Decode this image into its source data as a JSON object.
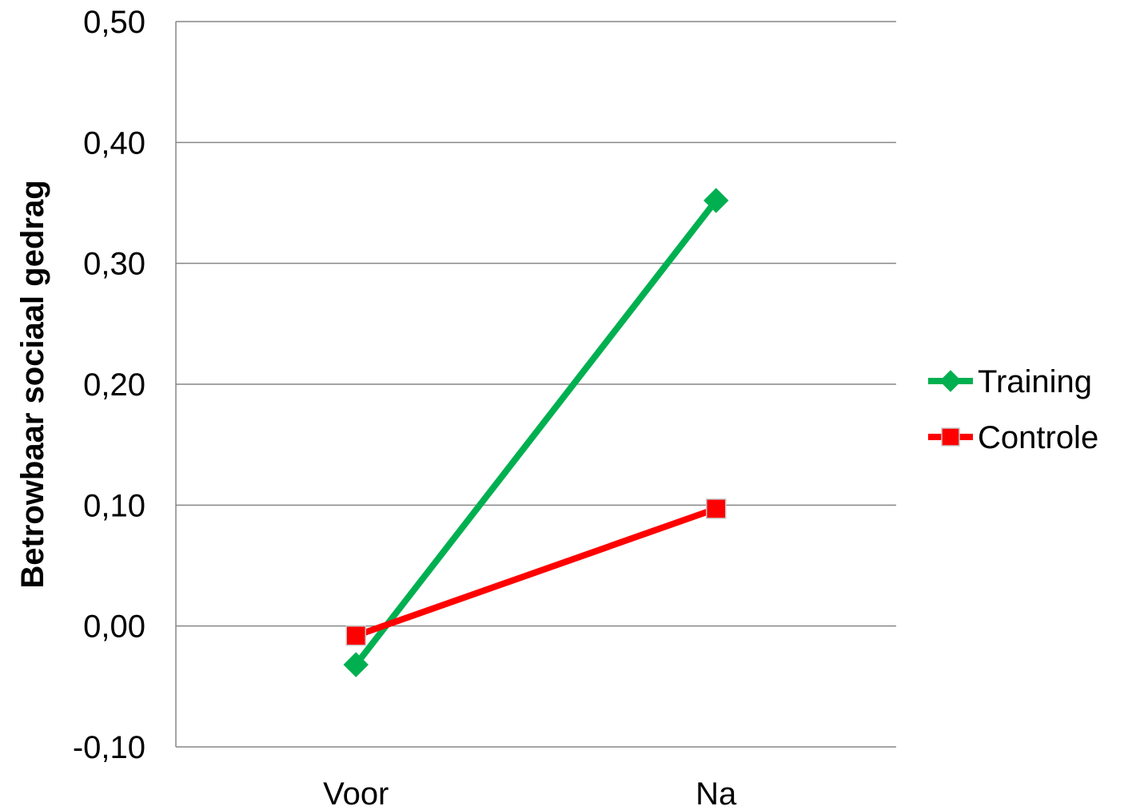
{
  "chart_data": {
    "type": "line",
    "categories": [
      "Voor",
      "Na"
    ],
    "series": [
      {
        "name": "Training",
        "values": [
          -0.032,
          0.352
        ],
        "color": "#00b050",
        "marker": "diamond"
      },
      {
        "name": "Controle",
        "values": [
          -0.008,
          0.097
        ],
        "color": "#ff0000",
        "marker": "square"
      }
    ],
    "title": "",
    "xlabel": "",
    "ylabel": "Betrowbaar sociaal gedrag",
    "ylim": [
      -0.1,
      0.5
    ],
    "yticks": [
      -0.1,
      0.0,
      0.1,
      0.2,
      0.3,
      0.4,
      0.5
    ],
    "ytick_labels": [
      "-0,10",
      "0,00",
      "0,10",
      "0,20",
      "0,30",
      "0,40",
      "0,50"
    ],
    "grid": true,
    "legend_position": "right"
  }
}
